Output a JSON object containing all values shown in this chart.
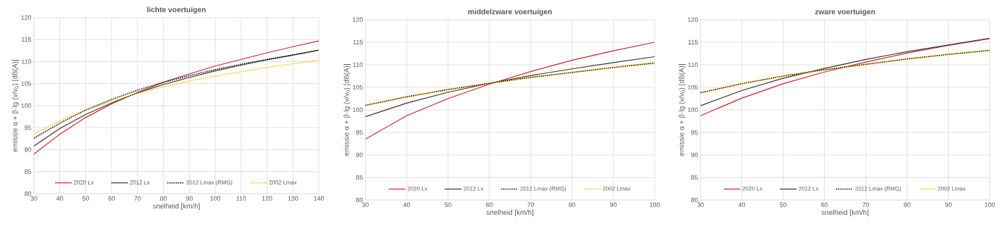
{
  "chart_data": [
    {
      "type": "line",
      "title": "lichte voertuigen",
      "xlabel": "snelheid [km/h]",
      "ylabel": "emissie α + β·lg (v/v$_{0}$)  [dB(A)]",
      "x": [
        30,
        40,
        50,
        60,
        70,
        80,
        90,
        100,
        110,
        120,
        130,
        140
      ],
      "xlim": [
        30,
        140
      ],
      "xticks": [
        30,
        40,
        50,
        60,
        70,
        80,
        90,
        100,
        110,
        120,
        130,
        140
      ],
      "ylim": [
        80,
        120
      ],
      "yticks": [
        80,
        85,
        90,
        95,
        100,
        105,
        110,
        115,
        120
      ],
      "grid": true,
      "legend": "bottom",
      "series": [
        {
          "name": "2020 Lx",
          "color": "#d0202a",
          "line_style": "solid",
          "values": [
            89,
            93.5,
            97.3,
            100.4,
            103,
            105.3,
            107.2,
            109,
            110.5,
            112,
            113.4,
            114.7
          ]
        },
        {
          "name": "2012 Lx",
          "color": "#333333",
          "line_style": "solid",
          "values": [
            90.8,
            94.8,
            98,
            100.6,
            102.9,
            104.8,
            106.4,
            107.9,
            109.2,
            110.4,
            111.5,
            112.6
          ]
        },
        {
          "name": "2012 Lmax (RMG)",
          "color": "#000000",
          "line_style": "dotted",
          "values": [
            92.6,
            96,
            99,
            101.4,
            103.5,
            105.3,
            106.8,
            108.2,
            109.4,
            110.5,
            111.5,
            112.6
          ]
        },
        {
          "name": "2002 Lmax",
          "color": "#ffc000",
          "line_style": "dotted",
          "values": [
            93.6,
            96.5,
            99,
            101,
            102.8,
            104.3,
            105.6,
            106.7,
            107.7,
            108.7,
            109.5,
            110.3
          ]
        }
      ]
    },
    {
      "type": "line",
      "title": "middelzware voertuigen",
      "xlabel": "snelheid [km/h]",
      "ylabel": "emissie α + β·lg (v/v$_{0}$)  [dB(A)]",
      "x": [
        30,
        40,
        50,
        60,
        70,
        80,
        90,
        100
      ],
      "xlim": [
        30,
        100
      ],
      "xticks": [
        30,
        40,
        50,
        60,
        70,
        80,
        90,
        100
      ],
      "ylim": [
        80,
        120
      ],
      "yticks": [
        80,
        85,
        90,
        95,
        100,
        105,
        110,
        115,
        120
      ],
      "grid": true,
      "legend": "bottom",
      "series": [
        {
          "name": "2020 Lx",
          "color": "#d0202a",
          "line_style": "solid",
          "values": [
            93.5,
            98.7,
            102.5,
            105.7,
            108.5,
            111,
            113.1,
            115
          ]
        },
        {
          "name": "2012 Lx",
          "color": "#333333",
          "line_style": "solid",
          "values": [
            98.5,
            101.5,
            103.9,
            105.9,
            107.6,
            109.1,
            110.5,
            111.8
          ]
        },
        {
          "name": "2012 Lmax (RMG)",
          "color": "#000000",
          "line_style": "dotted",
          "values": [
            101,
            102.9,
            104.5,
            105.9,
            107.2,
            108.3,
            109.4,
            110.4
          ]
        },
        {
          "name": "2002 Lmax",
          "color": "#ffc000",
          "line_style": "dotted",
          "values": [
            101,
            102.9,
            104.5,
            105.9,
            107.2,
            108.3,
            109.4,
            110.4
          ]
        }
      ]
    },
    {
      "type": "line",
      "title": "zware voertuigen",
      "xlabel": "snelheid [km/h]",
      "ylabel": "emissie α + β·lg (v/v$_{0}$)  [dB(A)]",
      "x": [
        30,
        40,
        50,
        60,
        70,
        80,
        90,
        100
      ],
      "xlim": [
        30,
        100
      ],
      "xticks": [
        30,
        40,
        50,
        60,
        70,
        80,
        90,
        100
      ],
      "ylim": [
        80,
        120
      ],
      "yticks": [
        80,
        85,
        90,
        95,
        100,
        105,
        110,
        115,
        120
      ],
      "grid": true,
      "legend": "bottom",
      "series": [
        {
          "name": "2020 Lx",
          "color": "#d0202a",
          "line_style": "solid",
          "values": [
            98.7,
            102.6,
            105.8,
            108.4,
            110.6,
            112.6,
            114.3,
            115.8
          ]
        },
        {
          "name": "2012 Lx",
          "color": "#333333",
          "line_style": "solid",
          "values": [
            100.9,
            104.3,
            107,
            109.2,
            111.2,
            112.9,
            114.4,
            115.9
          ]
        },
        {
          "name": "2012 Lmax (RMG)",
          "color": "#000000",
          "line_style": "dotted",
          "values": [
            103.8,
            105.8,
            107.5,
            108.9,
            110.1,
            111.3,
            112.3,
            113.2
          ]
        },
        {
          "name": "2002 Lmax",
          "color": "#ffc000",
          "line_style": "dotted",
          "values": [
            103.8,
            105.8,
            107.5,
            108.9,
            110.1,
            111.3,
            112.3,
            113.2
          ]
        }
      ]
    }
  ]
}
